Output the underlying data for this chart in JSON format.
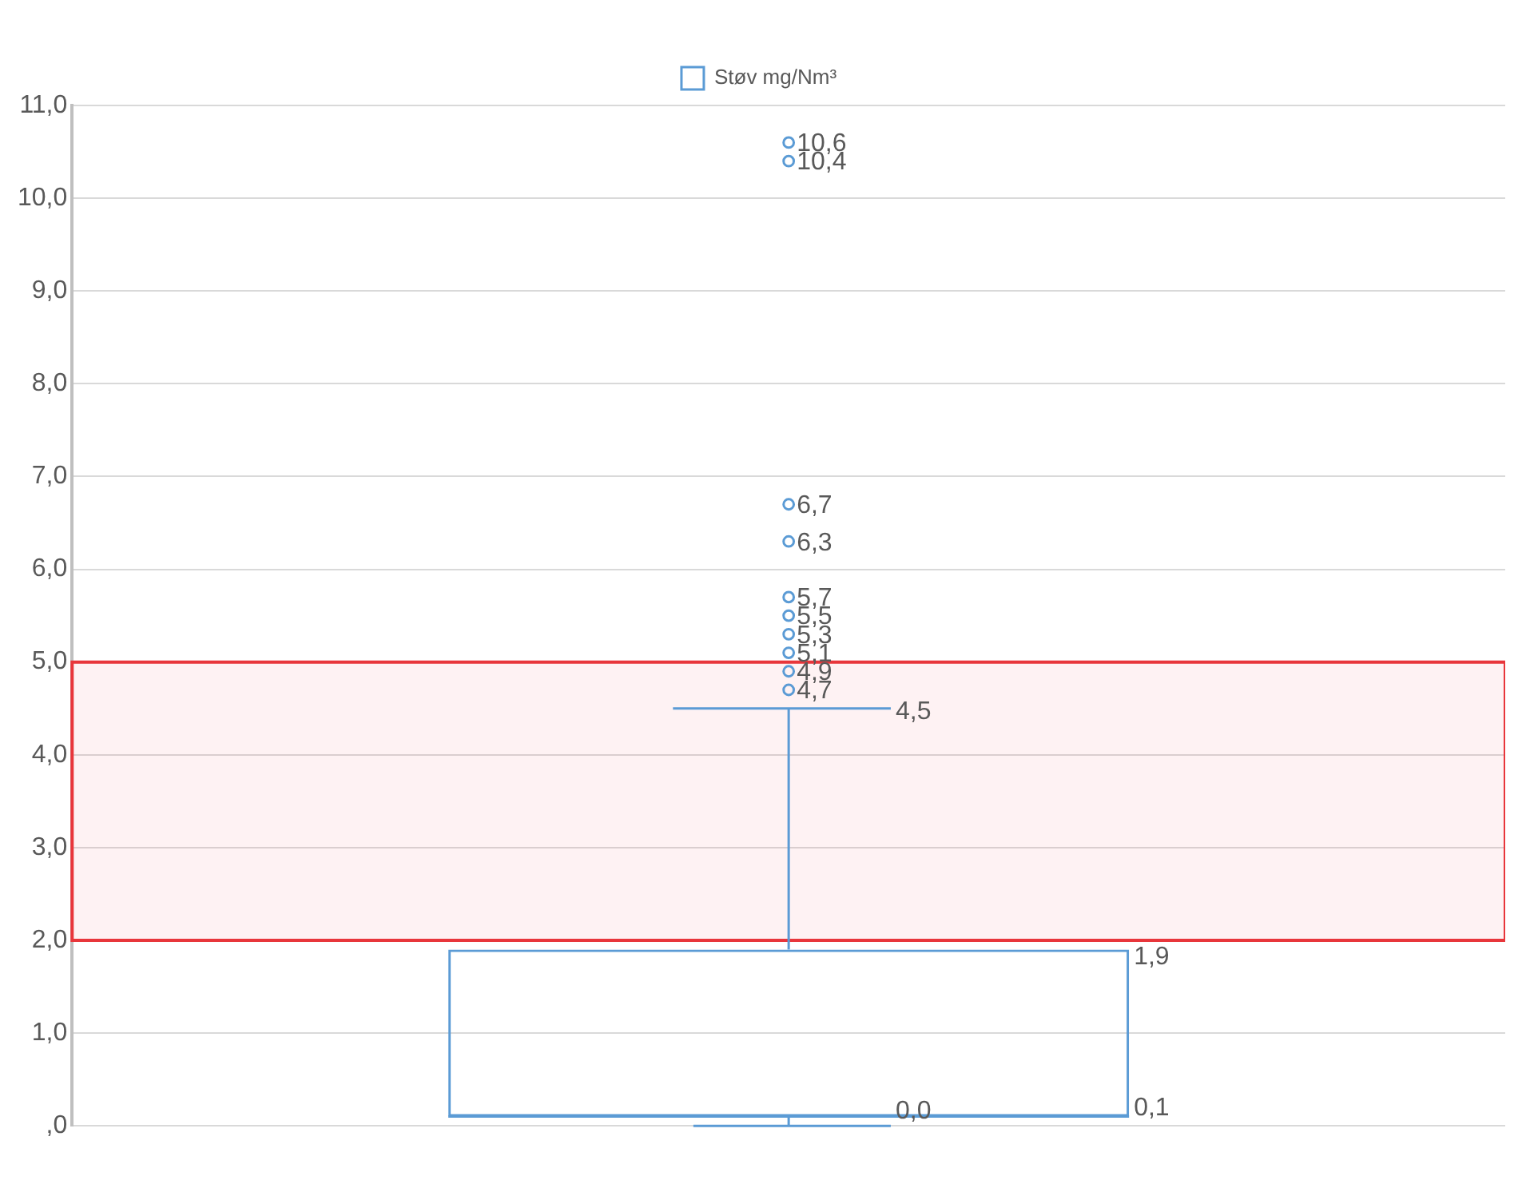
{
  "chart_data": {
    "type": "box",
    "categories": [
      null
    ],
    "series": [
      {
        "name": "Støv mg/Nm³",
        "color": "#5b9bd5",
        "boxes": [
          {
            "low": 0.0,
            "q1": 0.1,
            "median": 0.1,
            "q3": 1.9,
            "high": 4.5,
            "outliers": [
              4.7,
              4.9,
              5.1,
              5.3,
              5.5,
              5.7,
              6.3,
              6.7,
              10.4,
              10.6
            ]
          }
        ]
      }
    ],
    "ylim": [
      0,
      11
    ],
    "yticks": [
      {
        "value": 0,
        "label": ",0"
      },
      {
        "value": 1,
        "label": "1,0"
      },
      {
        "value": 2,
        "label": "2,0"
      },
      {
        "value": 3,
        "label": "3,0"
      },
      {
        "value": 4,
        "label": "4,0"
      },
      {
        "value": 5,
        "label": "5,0"
      },
      {
        "value": 6,
        "label": "6,0"
      },
      {
        "value": 7,
        "label": "7,0"
      },
      {
        "value": 8,
        "label": "8,0"
      },
      {
        "value": 9,
        "label": "9,0"
      },
      {
        "value": 10,
        "label": "10,0"
      },
      {
        "value": 11,
        "label": "11,0"
      }
    ],
    "bands": [
      {
        "axis": "y",
        "from": 2,
        "to": 5,
        "color": "#e8363b"
      }
    ],
    "annotations": [
      "4,7",
      "4,9",
      "5,1",
      "5,3",
      "5,5",
      "5,7",
      "6,3",
      "6,7",
      "10,4",
      "10,6",
      "4,5",
      "1,9",
      "0,1",
      "0,0"
    ],
    "data_labels": true,
    "grid": "y",
    "legend": "top",
    "marker": "circle"
  }
}
